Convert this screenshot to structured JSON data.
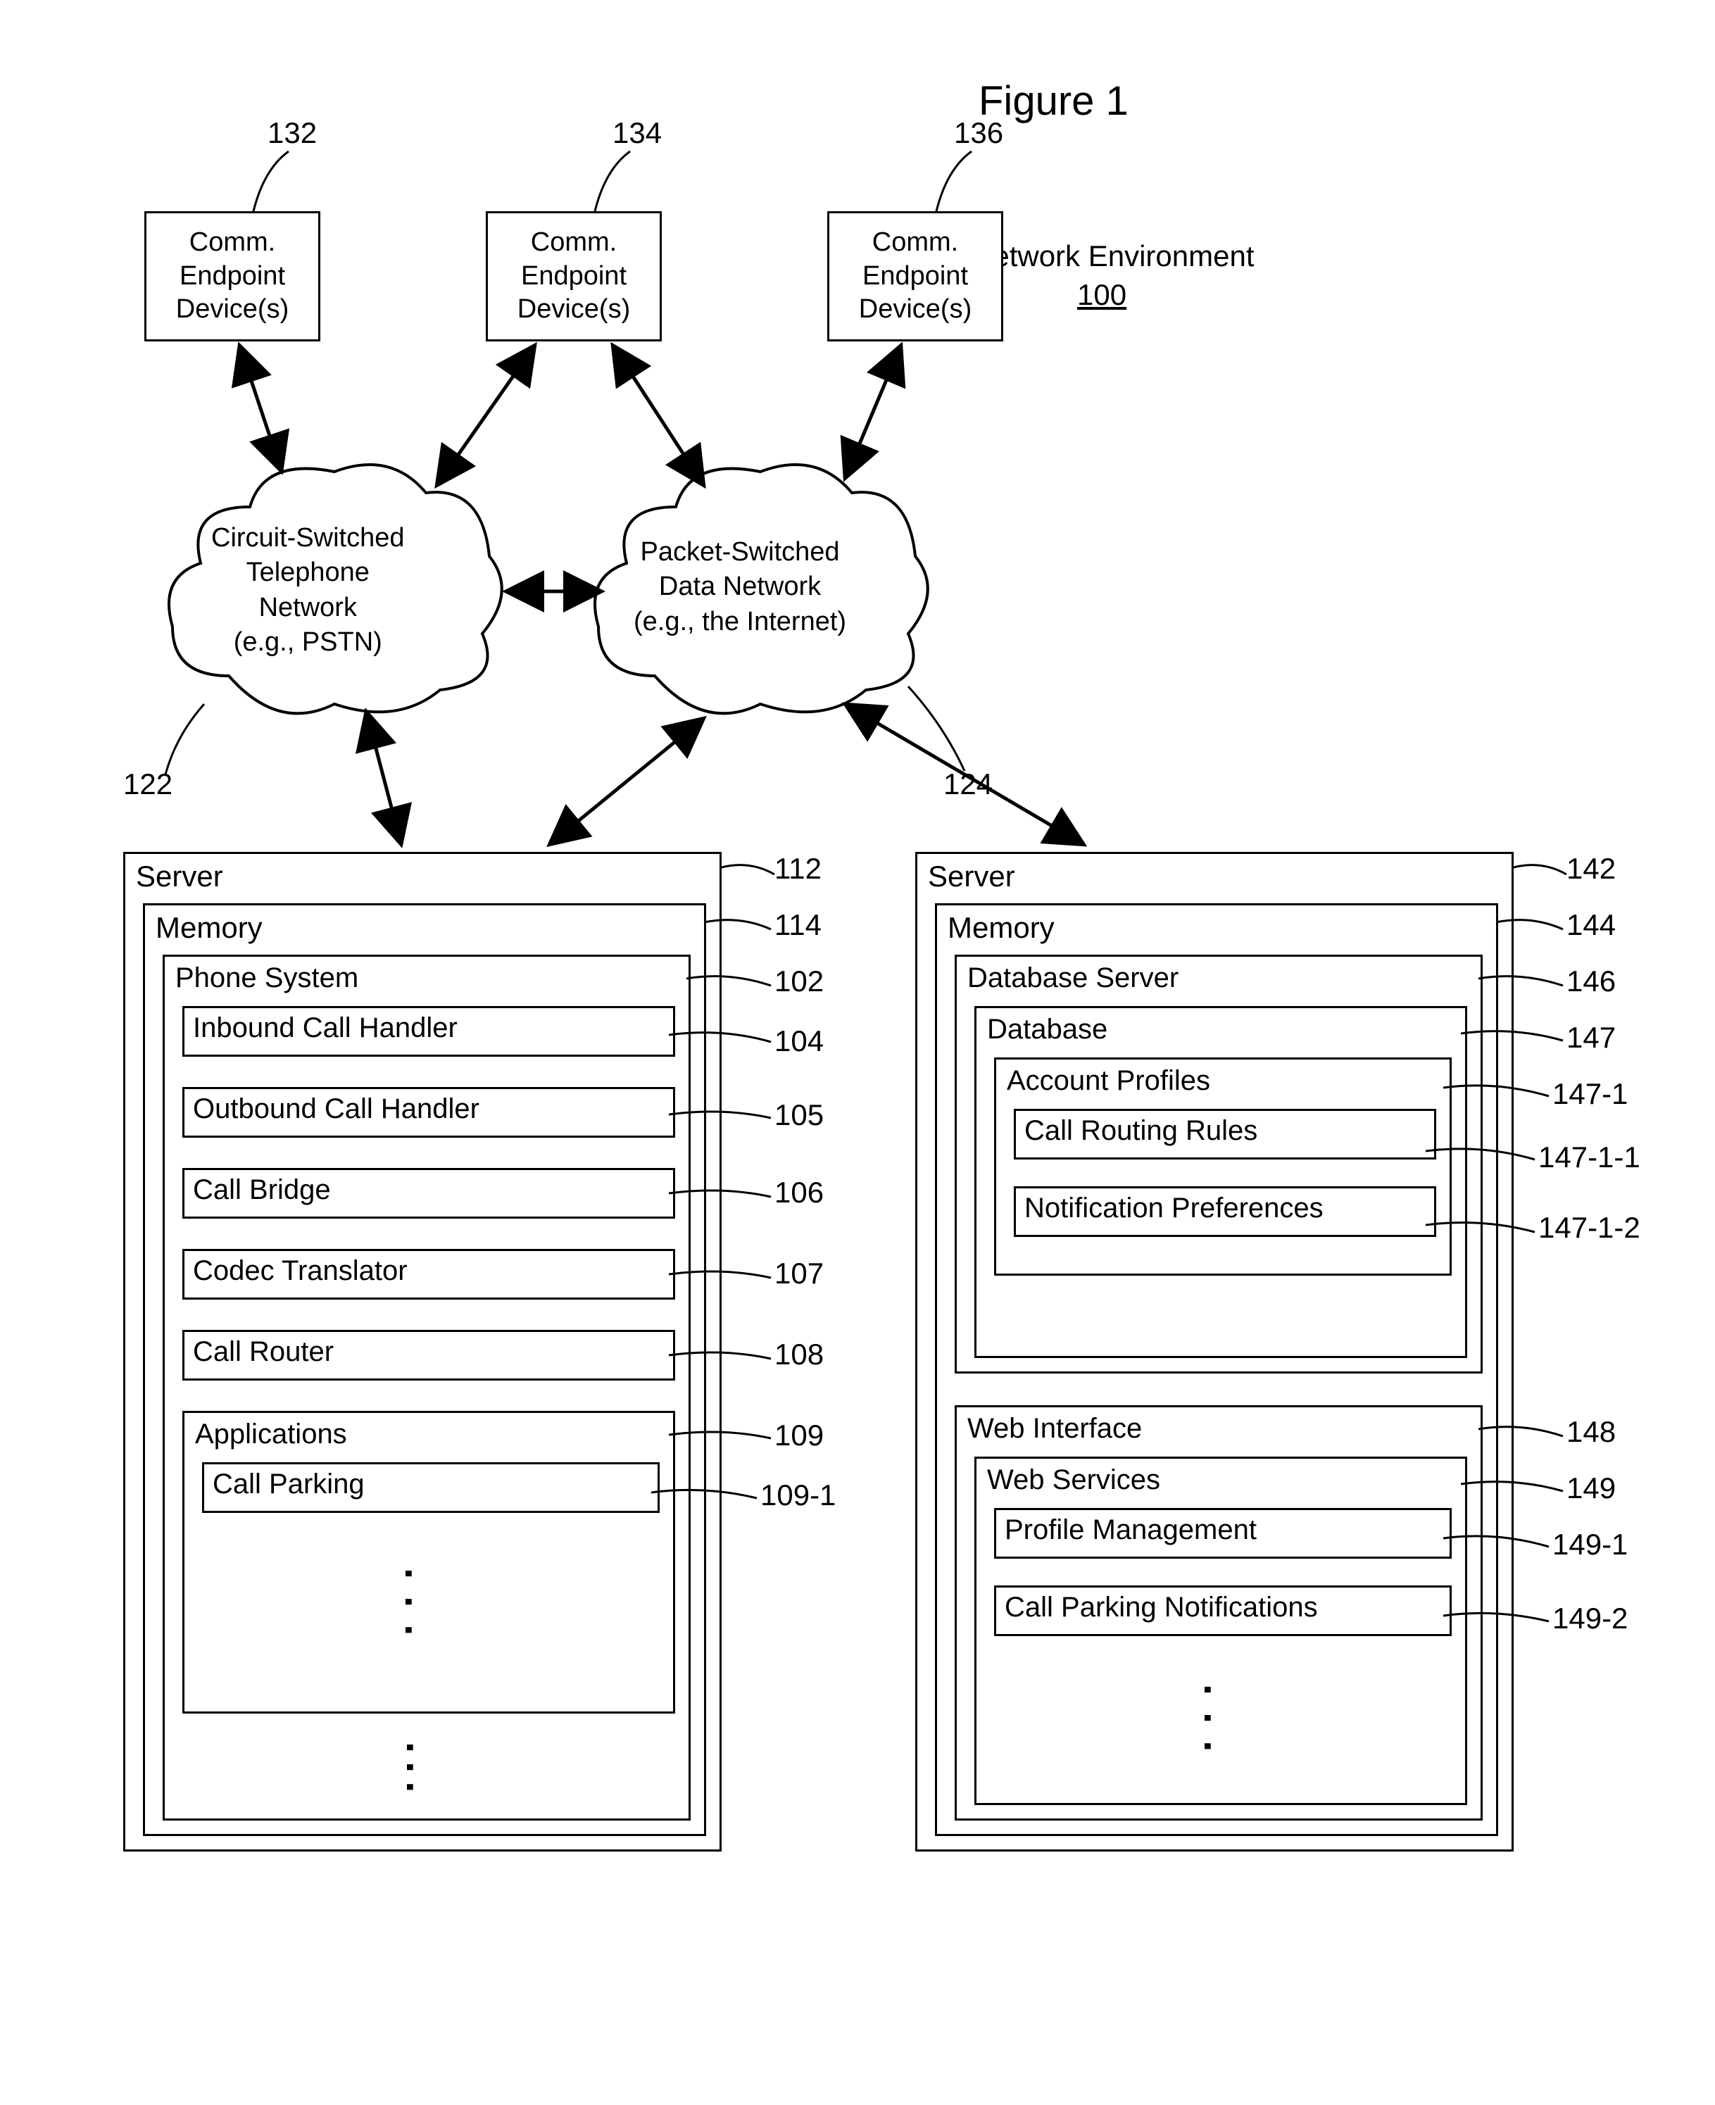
{
  "figure_title": "Figure 1",
  "env_label": "Network Environment",
  "env_num": "100",
  "endpoints": {
    "e1": "Comm.\nEndpoint\nDevice(s)",
    "e2": "Comm.\nEndpoint\nDevice(s)",
    "e3": "Comm.\nEndpoint\nDevice(s)"
  },
  "clouds": {
    "cs_label": "Circuit-Switched\nTelephone\nNetwork\n(e.g., PSTN)",
    "ps_label": "Packet-Switched\nData Network\n(e.g., the Internet)"
  },
  "refs": {
    "r132": "132",
    "r134": "134",
    "r136": "136",
    "r122": "122",
    "r124": "124",
    "r112": "112",
    "r114": "114",
    "r102": "102",
    "r104": "104",
    "r105": "105",
    "r106": "106",
    "r107": "107",
    "r108": "108",
    "r109": "109",
    "r109_1": "109-1",
    "r142": "142",
    "r144": "144",
    "r146": "146",
    "r147": "147",
    "r147_1": "147-1",
    "r147_1_1": "147-1-1",
    "r147_1_2": "147-1-2",
    "r148": "148",
    "r149": "149",
    "r149_1": "149-1",
    "r149_2": "149-2"
  },
  "server1": {
    "title": "Server",
    "memory": "Memory",
    "phone_system": "Phone System",
    "inbound": "Inbound Call Handler",
    "outbound": "Outbound Call Handler",
    "bridge": "Call Bridge",
    "codec": "Codec Translator",
    "router": "Call Router",
    "apps": "Applications",
    "parking": "Call Parking"
  },
  "server2": {
    "title": "Server",
    "memory": "Memory",
    "dbserver": "Database Server",
    "database": "Database",
    "profiles": "Account Profiles",
    "routing": "Call Routing Rules",
    "notif_pref": "Notification Preferences",
    "webif": "Web Interface",
    "webserv": "Web Services",
    "profmgmt": "Profile Management",
    "parknotif": "Call Parking Notifications"
  },
  "style": {
    "stroke": "#000000",
    "bg": "#ffffff",
    "font_main": "Arial"
  }
}
